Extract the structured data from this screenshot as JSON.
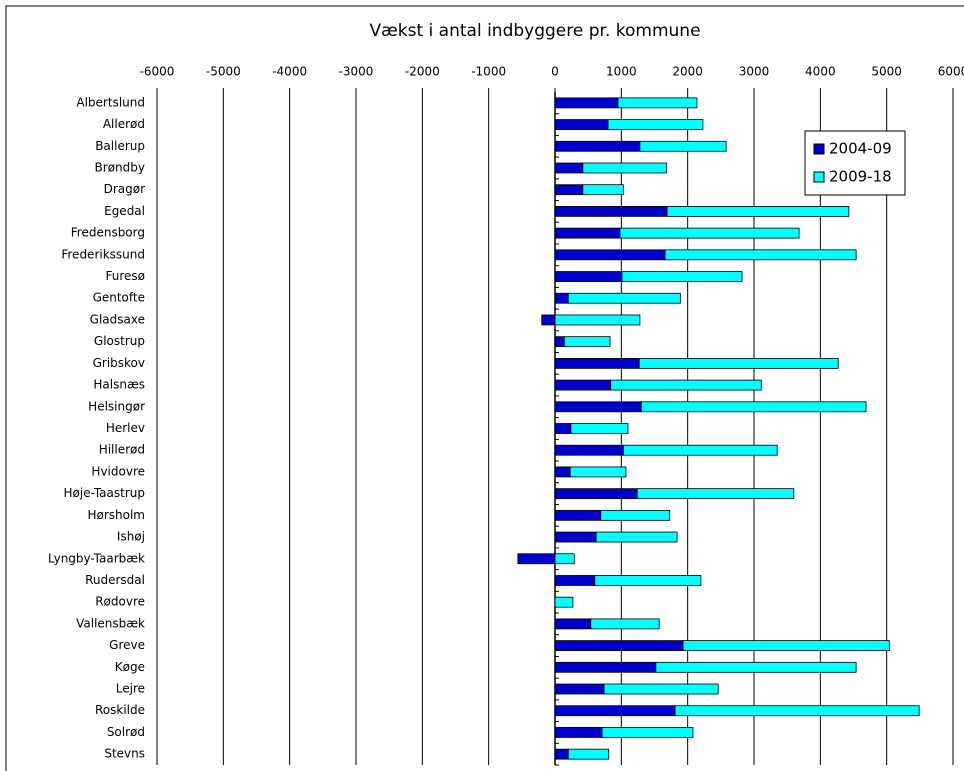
{
  "chart_data": {
    "type": "stacked-barh",
    "title": "Vækst i antal indbyggere pr. kommune",
    "categories": [
      "Albertslund",
      "Allerød",
      "Ballerup",
      "Brøndby",
      "Dragør",
      "Egedal",
      "Fredensborg",
      "Frederikssund",
      "Furesø",
      "Gentofte",
      "Gladsaxe",
      "Glostrup",
      "Gribskov",
      "Halsnæs",
      "Helsingør",
      "Herlev",
      "Hillerød",
      "Hvidovre",
      "Høje-Taastrup",
      "Hørsholm",
      "Ishøj",
      "Lyngby-Taarbæk",
      "Rudersdal",
      "Rødovre",
      "Vallensbæk",
      "Greve",
      "Køge",
      "Lejre",
      "Roskilde",
      "Solrød",
      "Stevns"
    ],
    "series": [
      {
        "name": "2004-09",
        "color": "#0000cc",
        "values": [
          950,
          800,
          1280,
          420,
          420,
          1690,
          980,
          1660,
          1010,
          200,
          -200,
          140,
          1270,
          840,
          1300,
          240,
          1030,
          230,
          1240,
          690,
          620,
          -560,
          600,
          0,
          540,
          1930,
          1520,
          740,
          1810,
          710,
          200
        ]
      },
      {
        "name": "2009-18",
        "color": "#00ffff",
        "values": [
          1190,
          1430,
          1300,
          1260,
          610,
          2740,
          2700,
          2880,
          1810,
          1690,
          1280,
          690,
          3000,
          2270,
          3390,
          860,
          2320,
          840,
          2360,
          1040,
          1220,
          290,
          1600,
          270,
          1030,
          3110,
          3020,
          1720,
          3680,
          1370,
          610
        ]
      }
    ],
    "xlim": [
      -6000,
      6000
    ],
    "xticks": [
      -6000,
      -5000,
      -4000,
      -3000,
      -2000,
      -1000,
      0,
      1000,
      2000,
      3000,
      4000,
      5000,
      6000
    ],
    "grid": true
  }
}
